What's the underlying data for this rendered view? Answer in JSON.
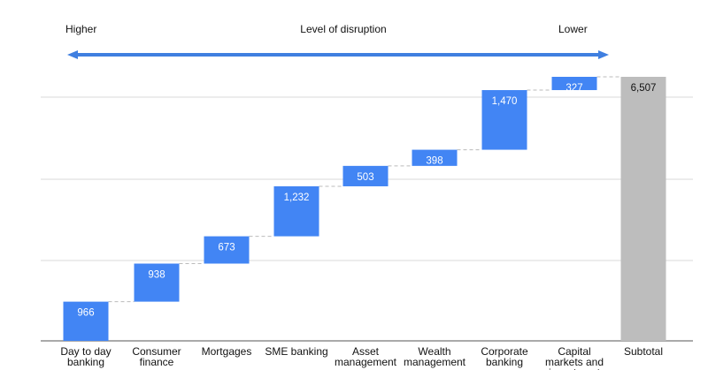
{
  "header": {
    "left_label": "Higher",
    "center_label": "Level of disruption",
    "right_label": "Lower"
  },
  "colors": {
    "bar": "#4285f4",
    "total_bar": "#bdbdbd",
    "arrow": "#3f7fe0",
    "grid": "#d9d9d9",
    "axis": "#555555",
    "connector": "#bbbbbb"
  },
  "chart_data": {
    "type": "bar",
    "subtype": "waterfall",
    "categories": [
      [
        "Day to day",
        "banking"
      ],
      [
        "Consumer",
        "finance"
      ],
      [
        "Mortgages"
      ],
      [
        "SME banking"
      ],
      [
        "Asset",
        "management"
      ],
      [
        "Wealth",
        "management"
      ],
      [
        "Corporate",
        "banking"
      ],
      [
        "Capital",
        "markets and",
        "investment"
      ],
      [
        "Subtotal"
      ]
    ],
    "values": [
      966,
      938,
      673,
      1232,
      503,
      398,
      1470,
      327,
      6507
    ],
    "value_labels": [
      "966",
      "938",
      "673",
      "1,232",
      "503",
      "398",
      "1,470",
      "327",
      "6,507"
    ],
    "total_index": 8,
    "ylim": [
      0,
      6507
    ],
    "grid": true,
    "legend": "none"
  }
}
